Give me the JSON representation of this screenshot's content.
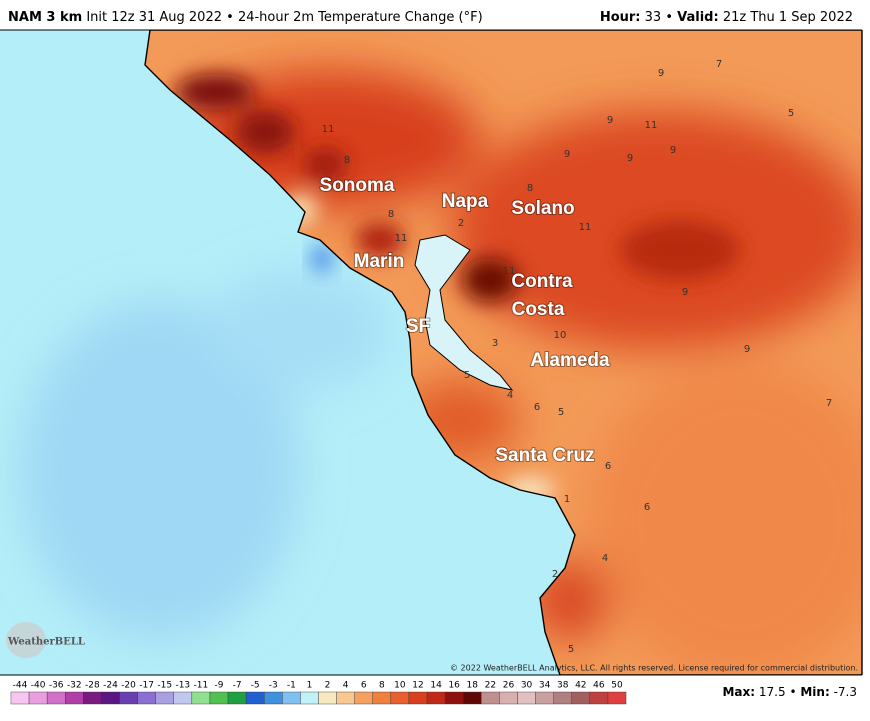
{
  "header": {
    "model": "NAM 3 km",
    "init": "Init 12z 31 Aug 2022",
    "separator": "•",
    "product": "24-hour 2m Temperature Change (°F)",
    "hour_label": "Hour:",
    "hour": 33,
    "valid_label": "Valid:",
    "valid": "21z Thu 1 Sep 2022"
  },
  "places": [
    "Sonoma",
    "Napa",
    "Solano",
    "Marin",
    "Contra",
    "Costa",
    "SF",
    "Alameda",
    "Santa Cruz"
  ],
  "contour_labels": [
    9,
    7,
    5,
    11,
    9,
    11,
    9,
    9,
    9,
    8,
    8,
    8,
    2,
    11,
    11,
    11,
    9,
    10,
    3,
    9,
    5,
    4,
    6,
    5,
    7,
    6,
    1,
    6,
    4,
    2,
    5
  ],
  "logo": "WeatherBELL",
  "copyright": "© 2022 WeatherBELL Analytics, LLC. All rights reserved. License required for commercial distribution.",
  "colorbar": {
    "ticks": [
      -44,
      -40,
      -36,
      -32,
      -28,
      -24,
      -20,
      -17,
      -15,
      -13,
      -11,
      -9,
      -7,
      -5,
      -3,
      -1,
      1,
      2,
      4,
      6,
      8,
      10,
      12,
      14,
      16,
      18,
      22,
      26,
      30,
      34,
      38,
      42,
      46,
      50
    ],
    "colors": [
      "#f7c6f0",
      "#e99ee0",
      "#d070c8",
      "#b040a8",
      "#7a1a80",
      "#5a1880",
      "#6a40b0",
      "#8a70d0",
      "#a8a0e0",
      "#c0c8f0",
      "#90e090",
      "#50c050",
      "#20a040",
      "#2060d0",
      "#4090e0",
      "#80c0f0",
      "#c0f0f8",
      "#f8e8c0",
      "#f8c890",
      "#f5a060",
      "#f08040",
      "#e86030",
      "#d84020",
      "#c02818",
      "#901010",
      "#600808",
      "#c09090",
      "#d8b0b0",
      "#e0c0c0",
      "#c8a0a0",
      "#b08080",
      "#a06060",
      "#c04040",
      "#e04040"
    ]
  },
  "stats": {
    "max_label": "Max:",
    "max": 17.5,
    "separator": "•",
    "min_label": "Min:",
    "min": -7.3
  }
}
